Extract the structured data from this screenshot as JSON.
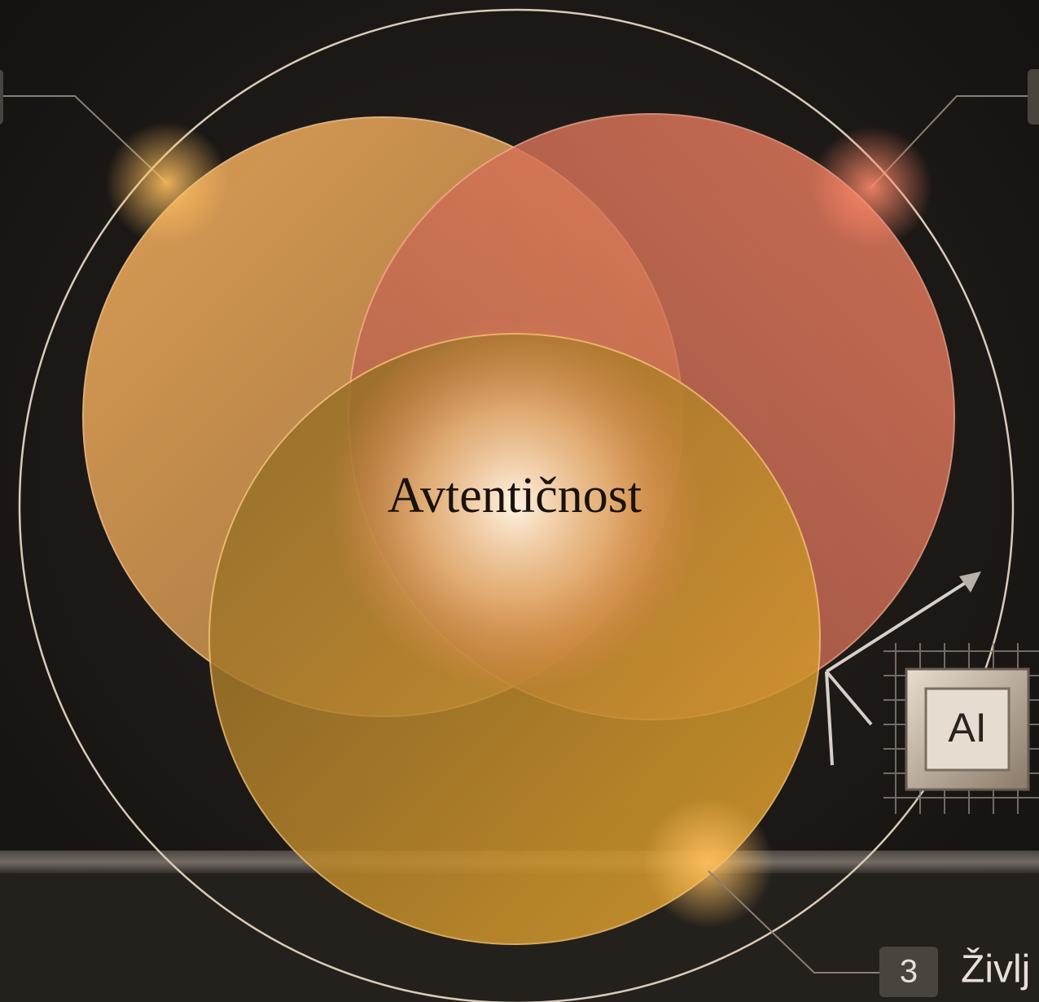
{
  "diagram": {
    "center_label": "Avtentičnost",
    "chip_label": "AI",
    "callouts": [
      {
        "number": "3",
        "label": "Življ"
      }
    ]
  }
}
